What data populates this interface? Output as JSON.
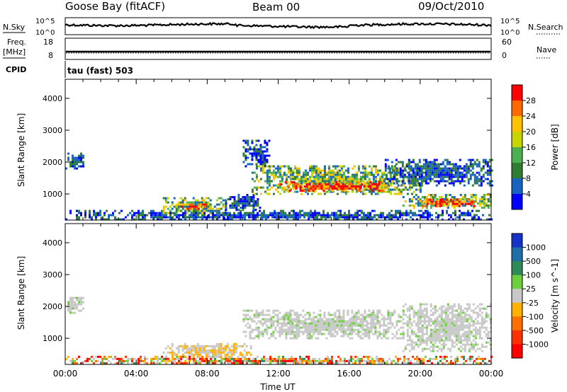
{
  "header": {
    "station": "Goose Bay (fitACF)",
    "beam": "Beam 00",
    "date": "09/Oct/2010"
  },
  "summary_panels": {
    "nsky_label": "N.Sky",
    "nsearch_label": "N.Search",
    "noise_ticks": [
      "10^5",
      "10^0"
    ],
    "freq_label_1": "Freq.",
    "freq_label_2": "[MHz]",
    "freq_ticks": [
      "18",
      "8"
    ],
    "nave_label": "Nave",
    "nave_ticks": [
      "60",
      "0"
    ],
    "cpid_label": "CPID",
    "cpid_text": "tau (fast) 503"
  },
  "power_colorbar": {
    "label": "Power [dB]",
    "ticks": [
      "28",
      "24",
      "20",
      "16",
      "12",
      "8",
      "4"
    ],
    "colors": [
      "#ff0000",
      "#ff6a00",
      "#ffc000",
      "#c8d400",
      "#4caf50",
      "#2e7d32",
      "#1565c0",
      "#0000ff"
    ]
  },
  "velocity_colorbar": {
    "label": "Velocity [m s^-1]",
    "ticks": [
      "1000",
      "500",
      "100",
      "25",
      "-25",
      "-100",
      "-500",
      "-1000"
    ],
    "colors": [
      "#1533c8",
      "#1e6ea8",
      "#2e8b57",
      "#6ecf3c",
      "#c8c8c8",
      "#ffb000",
      "#ff7000",
      "#ff3000",
      "#ff0000"
    ]
  },
  "chart_data": [
    {
      "type": "heatmap",
      "panel": "power",
      "ylabel": "Slant Range [km]",
      "xlim": [
        "00:00",
        "24:00"
      ],
      "ylim": [
        180,
        4600
      ],
      "yticks": [
        1000,
        2000,
        3000,
        4000
      ],
      "regions": [
        {
          "t_start": 0.0,
          "t_end": 1.0,
          "r_min": 1800,
          "r_max": 2300,
          "level": "low"
        },
        {
          "t_start": 0.0,
          "t_end": 24.0,
          "r_min": 200,
          "r_max": 500,
          "level": "low"
        },
        {
          "t_start": 5.5,
          "t_end": 9.0,
          "r_min": 400,
          "r_max": 900,
          "level": "medium"
        },
        {
          "t_start": 6.5,
          "t_end": 8.0,
          "r_min": 550,
          "r_max": 700,
          "level": "high"
        },
        {
          "t_start": 9.0,
          "t_end": 11.0,
          "r_min": 500,
          "r_max": 1000,
          "level": "low"
        },
        {
          "t_start": 10.0,
          "t_end": 11.5,
          "r_min": 1900,
          "r_max": 2700,
          "level": "low"
        },
        {
          "t_start": 10.5,
          "t_end": 20.0,
          "r_min": 1000,
          "r_max": 1900,
          "level": "medium"
        },
        {
          "t_start": 12.0,
          "t_end": 18.0,
          "r_min": 1100,
          "r_max": 1400,
          "level": "high"
        },
        {
          "t_start": 18.0,
          "t_end": 24.0,
          "r_min": 1300,
          "r_max": 2100,
          "level": "low"
        },
        {
          "t_start": 19.0,
          "t_end": 24.0,
          "r_min": 600,
          "r_max": 1000,
          "level": "medium"
        },
        {
          "t_start": 20.0,
          "t_end": 23.0,
          "r_min": 650,
          "r_max": 850,
          "level": "high"
        }
      ]
    },
    {
      "type": "heatmap",
      "panel": "velocity",
      "ylabel": "Slant Range [km]",
      "xlabel": "Time UT",
      "xlim": [
        "00:00",
        "24:00"
      ],
      "ylim": [
        180,
        4600
      ],
      "yticks": [
        1000,
        2000,
        3000,
        4000
      ],
      "xticks": [
        "00:00",
        "04:00",
        "08:00",
        "12:00",
        "16:00",
        "20:00",
        "00:00"
      ],
      "regions": [
        {
          "t_start": 0.0,
          "t_end": 1.0,
          "r_min": 1800,
          "r_max": 2300,
          "velocity": "near zero"
        },
        {
          "t_start": 0.0,
          "t_end": 24.0,
          "r_min": 200,
          "r_max": 450,
          "velocity": "mixed"
        },
        {
          "t_start": 5.5,
          "t_end": 10.5,
          "r_min": 400,
          "r_max": 850,
          "velocity": "slightly negative"
        },
        {
          "t_start": 10.0,
          "t_end": 19.0,
          "r_min": 1000,
          "r_max": 1900,
          "velocity": "near zero"
        },
        {
          "t_start": 19.0,
          "t_end": 24.0,
          "r_min": 600,
          "r_max": 2100,
          "velocity": "near zero"
        }
      ]
    }
  ]
}
